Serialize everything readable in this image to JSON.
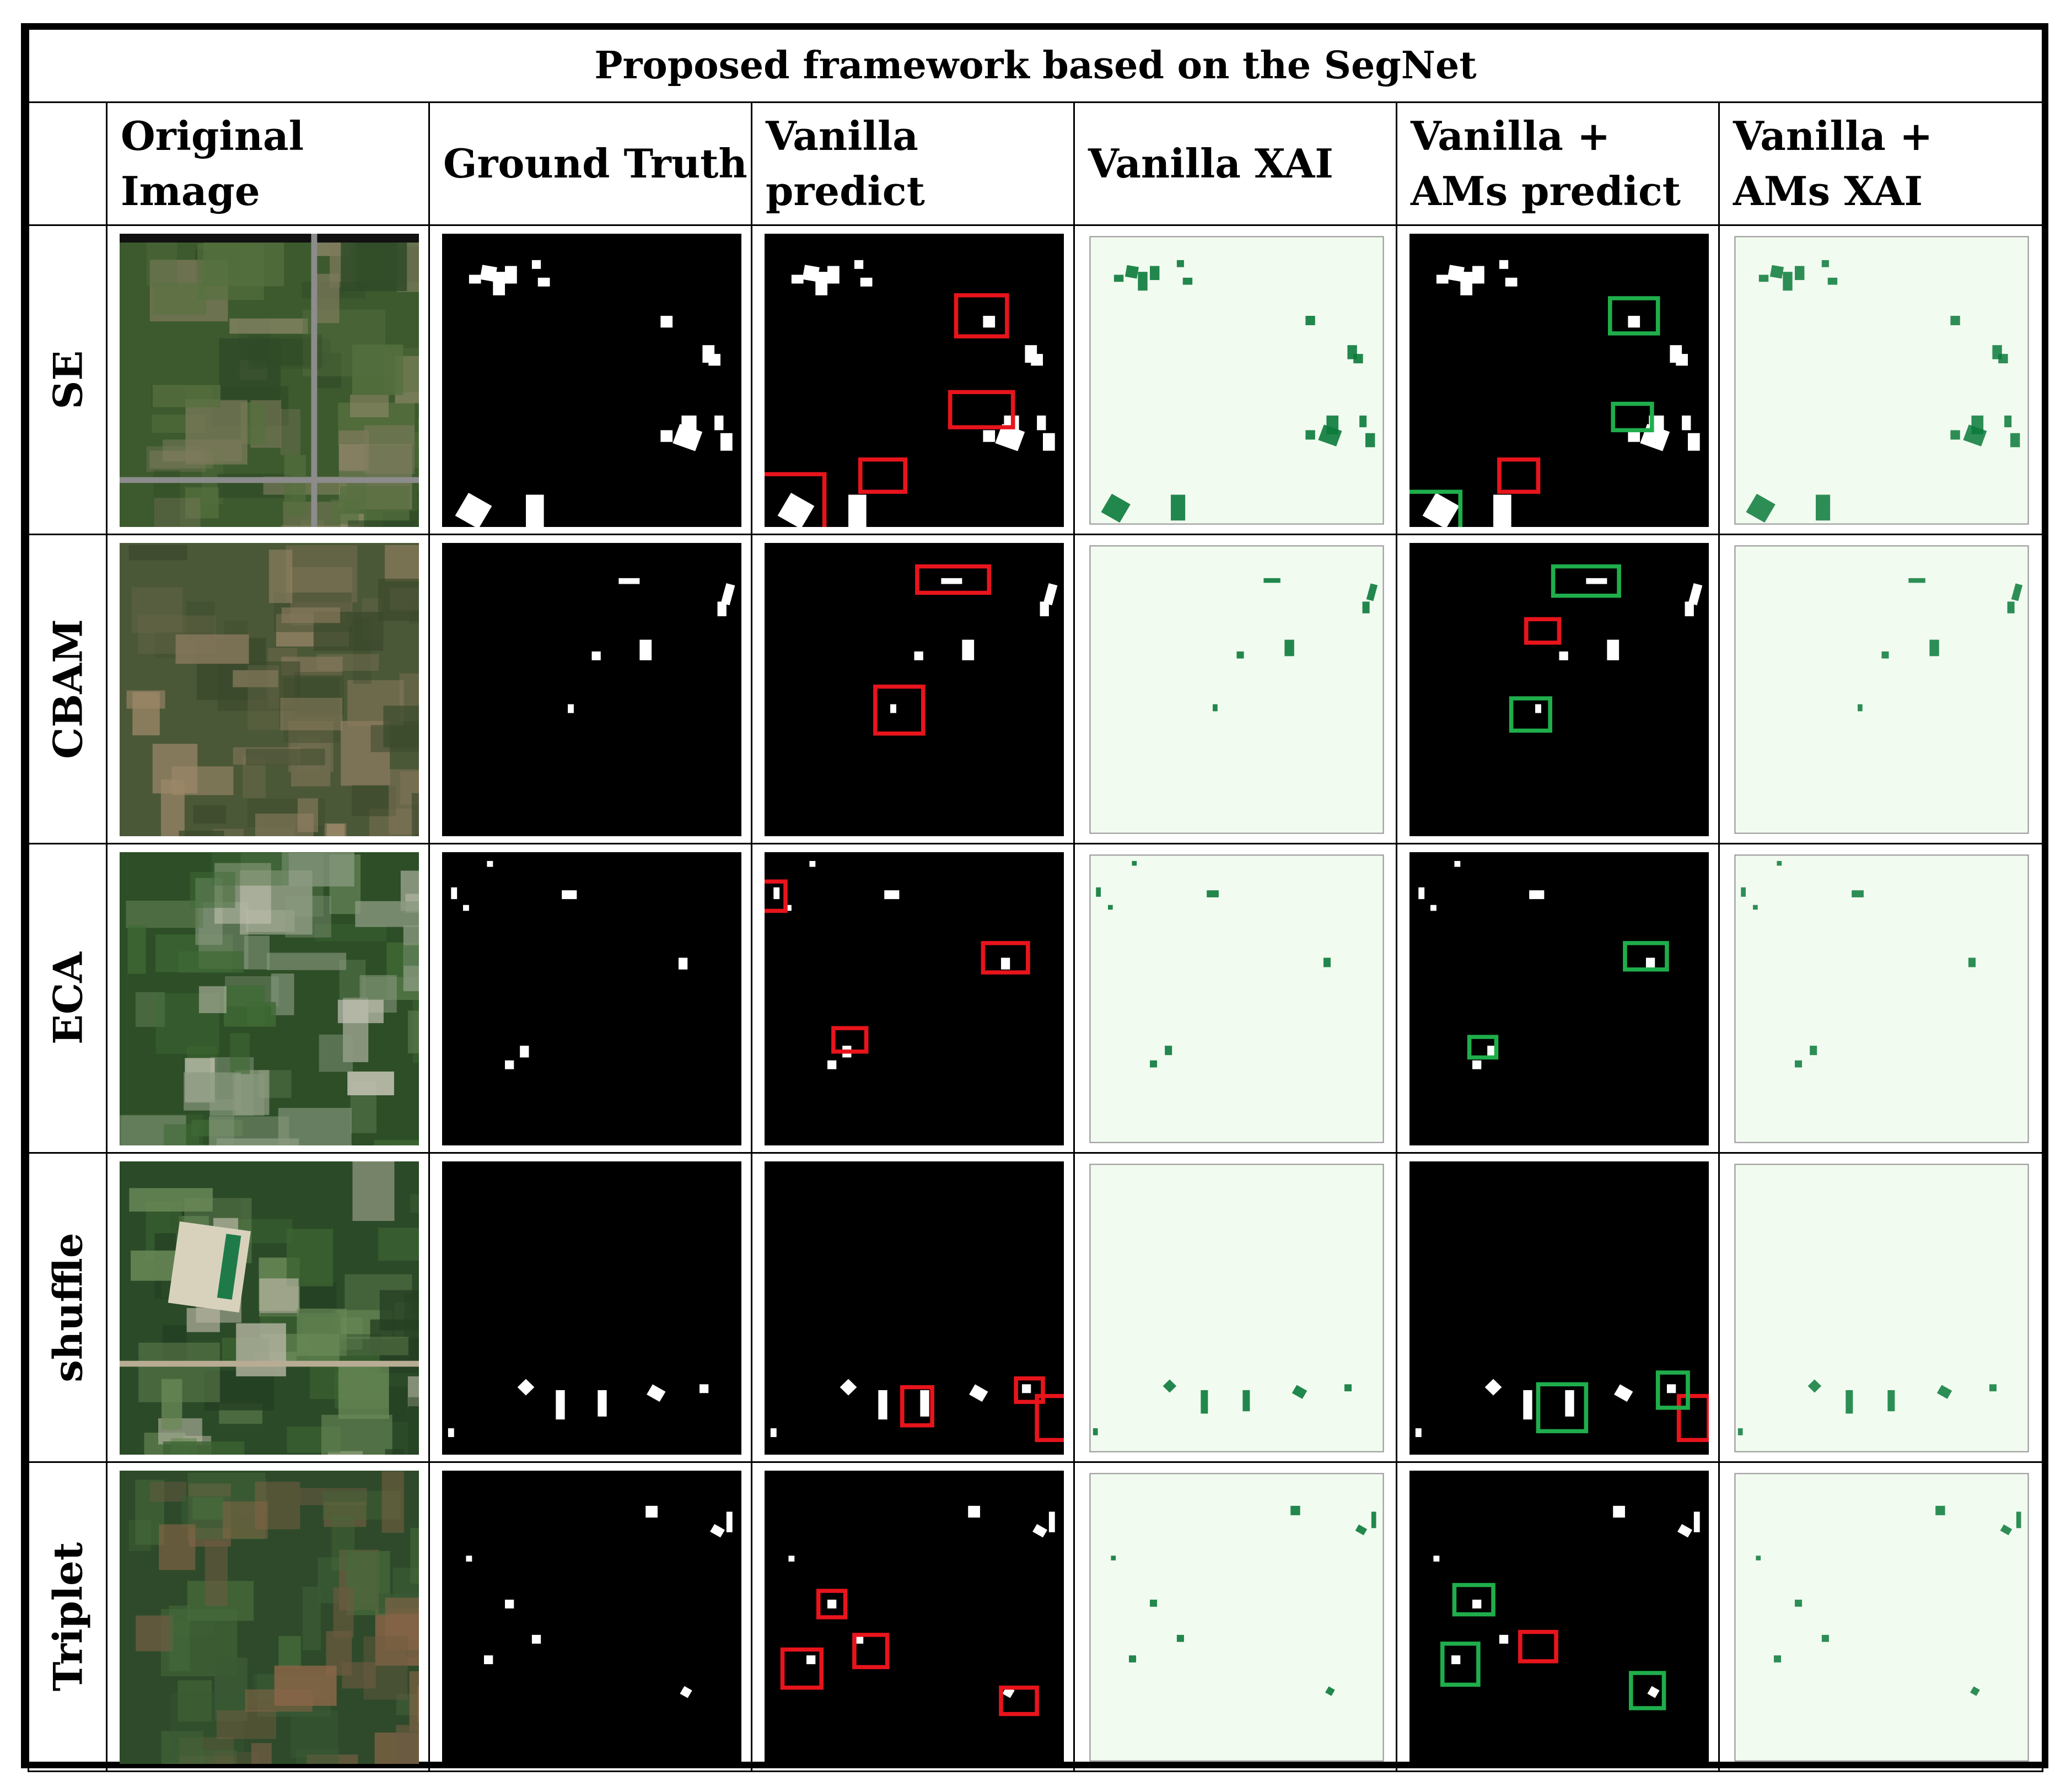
{
  "title": "Proposed framework based on the SegNet",
  "columns": [
    "",
    "Original Image",
    "Ground Truth",
    "Vanilla predict",
    "Vanilla XAI",
    "Vanilla + AMs predict",
    "Vanilla + AMs XAI"
  ],
  "rows": [
    "SE",
    "CBAM",
    "ECA",
    "shuffle",
    "Triplet"
  ],
  "colors": {
    "mask_background": "#000000",
    "mask_foreground": "#ffffff",
    "xai_background": "#f2fbf0",
    "xai_activation": "#0b7a3a",
    "error_box": "#e8141c",
    "correct_box": "#1fae4b"
  }
}
